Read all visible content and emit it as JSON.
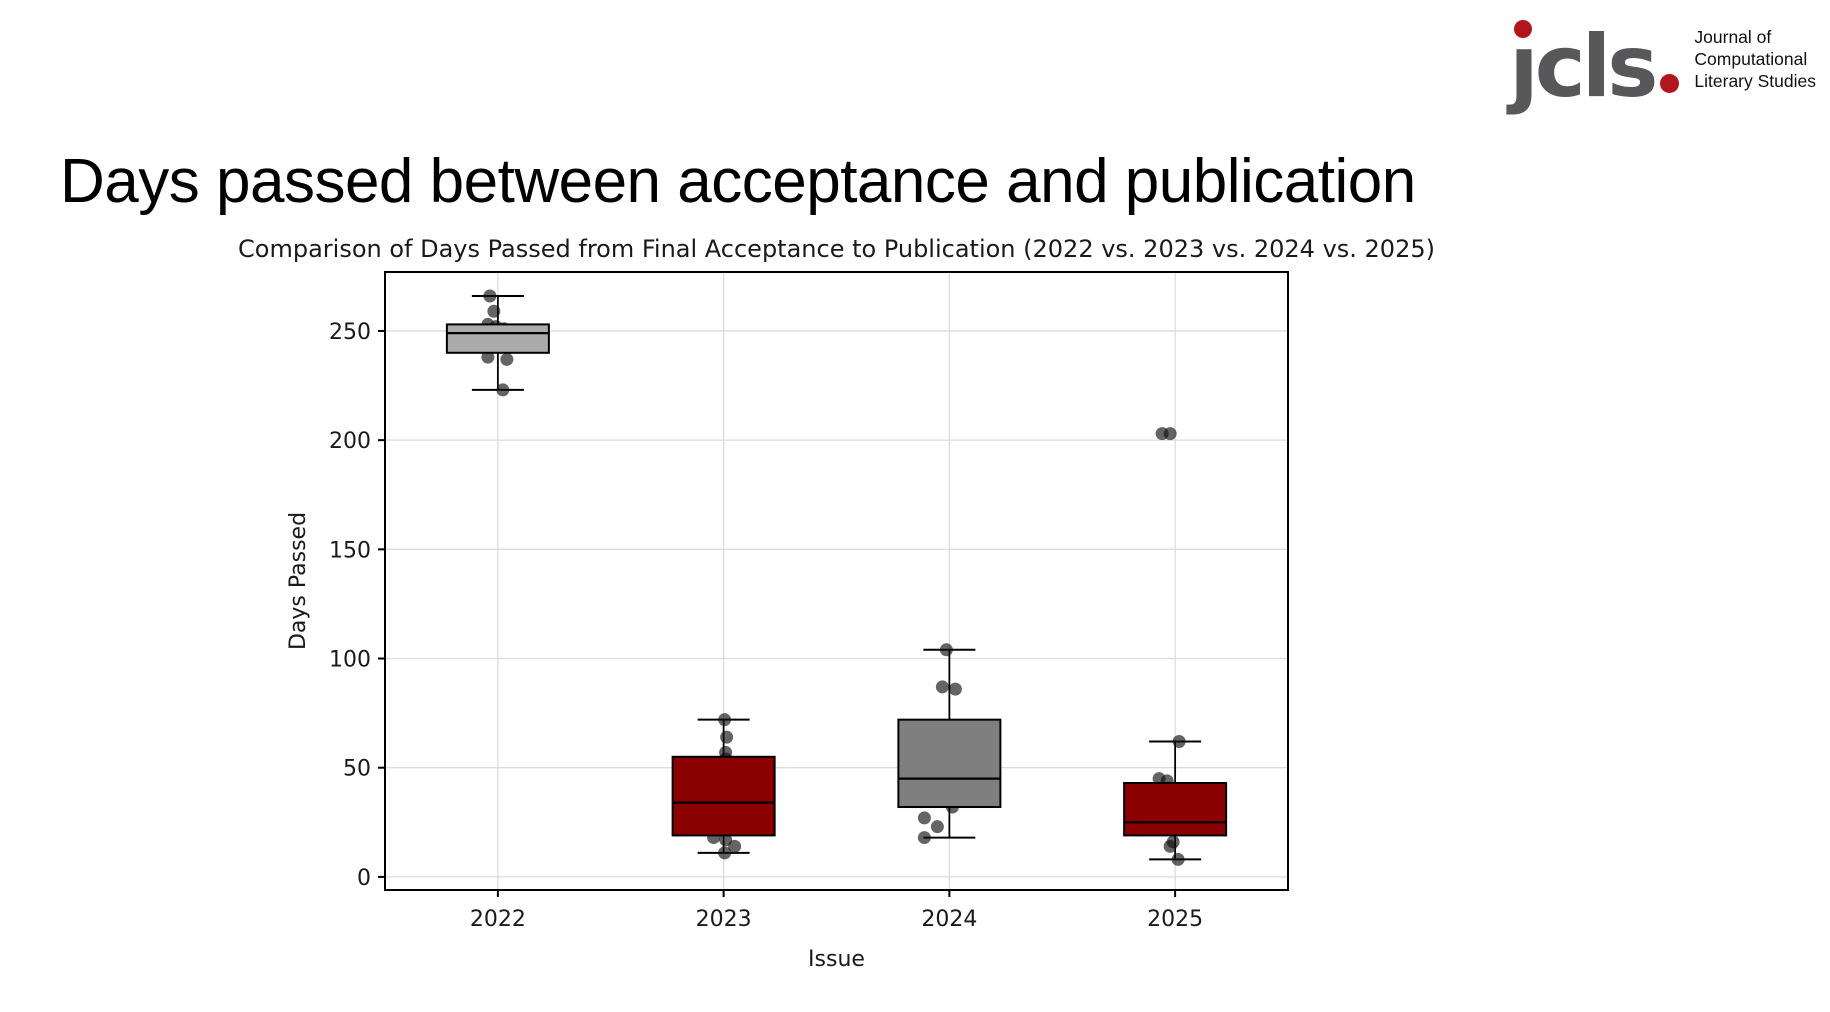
{
  "headline": {
    "text": "Days passed between acceptance and publication"
  },
  "logo": {
    "wordmark": "jcls.",
    "wordmark_body": "ȷcls",
    "name_lines": [
      "Journal of",
      "Computational",
      "Literary Studies"
    ],
    "colors": {
      "gray": "#58585a",
      "red": "#b2161d"
    }
  },
  "chart_data": {
    "type": "boxplot",
    "title": "Comparison of Days Passed from Final Acceptance to Publication (2022 vs. 2023 vs. 2024 vs. 2025)",
    "xlabel": "Issue",
    "ylabel": "Days Passed",
    "categories": [
      "2022",
      "2023",
      "2024",
      "2025"
    ],
    "yticks": [
      0,
      50,
      100,
      150,
      200,
      250
    ],
    "ylim": [
      -6,
      277
    ],
    "grid": true,
    "legend": "none",
    "colors": {
      "grid": "#dcdcdc",
      "spine": "#000000",
      "text": "#1a1a1a",
      "point": "#111111"
    },
    "series": [
      {
        "category": "2022",
        "color": "#ababab",
        "whislo": 223,
        "q1": 240,
        "med": 249,
        "q3": 253,
        "whishi": 266,
        "outliers": [],
        "points": [
          [
            266,
            -8
          ],
          [
            259,
            -4
          ],
          [
            253,
            -10
          ],
          [
            252,
            -2
          ],
          [
            251,
            6
          ],
          [
            238,
            -10
          ],
          [
            237,
            9
          ],
          [
            223,
            5
          ]
        ]
      },
      {
        "category": "2023",
        "color": "#8b0000",
        "whislo": 11,
        "q1": 19,
        "med": 34,
        "q3": 55,
        "whishi": 72,
        "outliers": [],
        "points": [
          [
            72,
            1
          ],
          [
            64,
            3
          ],
          [
            57,
            2
          ],
          [
            54,
            2
          ],
          [
            18,
            -10
          ],
          [
            17,
            2
          ],
          [
            14,
            11
          ],
          [
            11,
            1
          ]
        ]
      },
      {
        "category": "2024",
        "color": "#7f7f7f",
        "whislo": 18,
        "q1": 32,
        "med": 45,
        "q3": 72,
        "whishi": 104,
        "outliers": [],
        "points": [
          [
            104,
            -3
          ],
          [
            87,
            -7
          ],
          [
            86,
            6
          ],
          [
            32,
            3
          ],
          [
            27,
            -25
          ],
          [
            23,
            -12
          ],
          [
            18,
            -25
          ]
        ]
      },
      {
        "category": "2025",
        "color": "#8b0000",
        "whislo": 8,
        "q1": 19,
        "med": 25,
        "q3": 43,
        "whishi": 62,
        "outliers": [
          203,
          203
        ],
        "points": [
          [
            203,
            -13
          ],
          [
            203,
            -5
          ],
          [
            62,
            4
          ],
          [
            45,
            -16
          ],
          [
            44,
            -8
          ],
          [
            16,
            -2
          ],
          [
            14,
            -5
          ],
          [
            8,
            3
          ]
        ]
      }
    ]
  }
}
